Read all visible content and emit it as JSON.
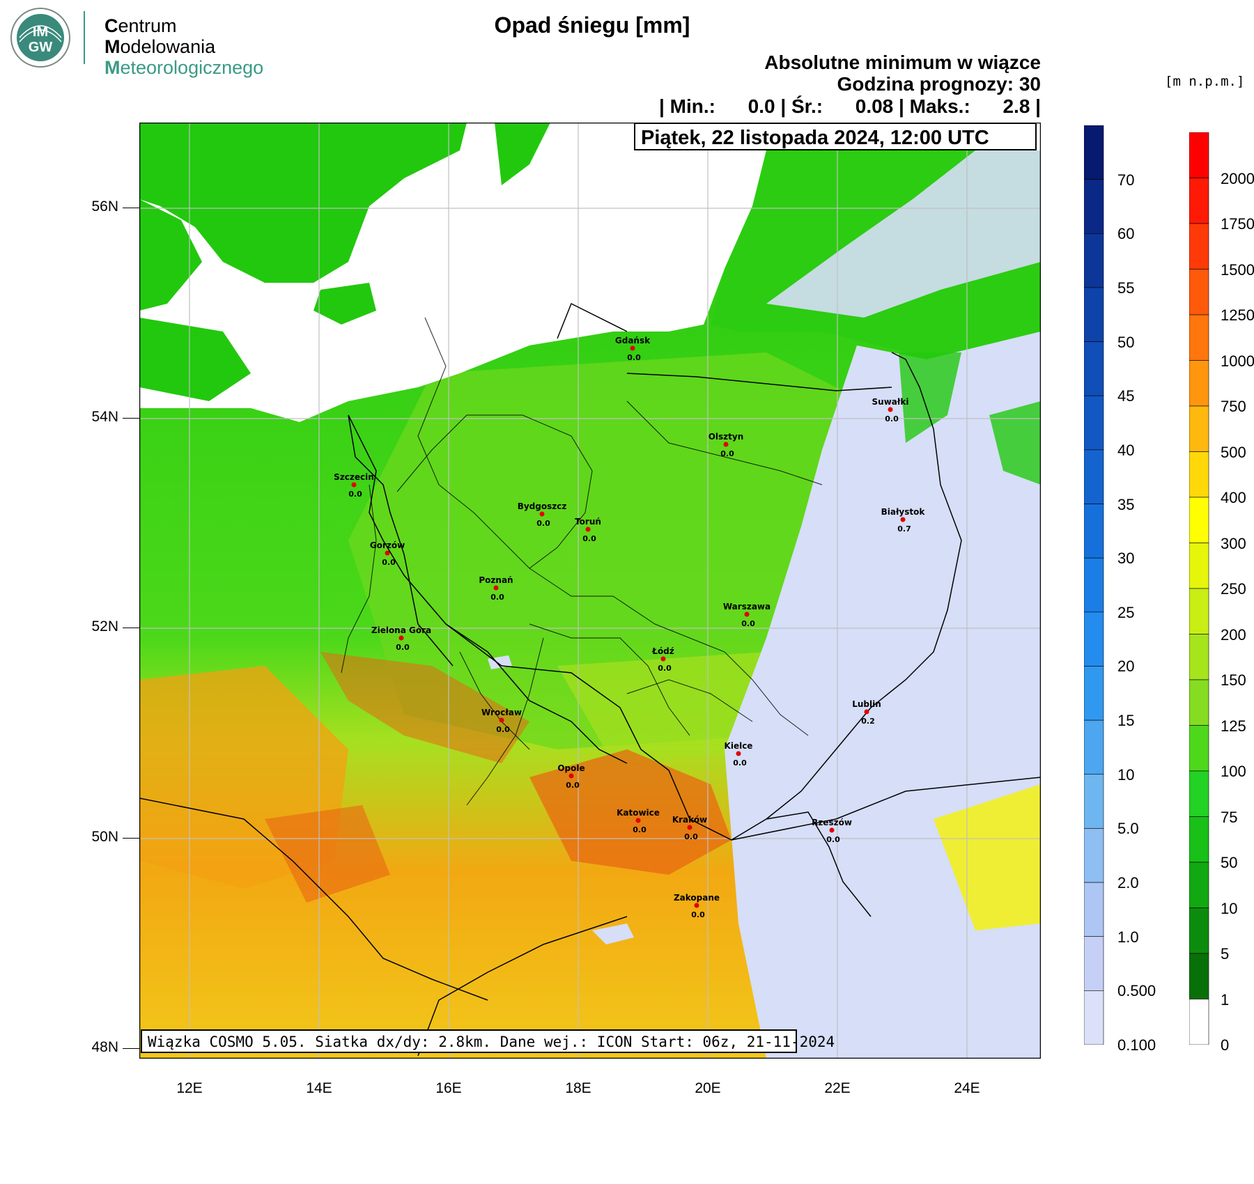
{
  "logo": {
    "badge_text_top": "IM",
    "badge_text_bottom": "GW",
    "line1_initial": "C",
    "line1_rest": "entrum",
    "line2_initial": "M",
    "line2_rest": "odelowania",
    "line3_initial": "M",
    "line3_rest": "eteorologicznego",
    "brand_color": "#3a9a86"
  },
  "title": "Opad śniegu [mm]",
  "subtitle1": "Absolutne minimum w wiązce",
  "subtitle2": "Godzina prognozy: 30",
  "stats": "| Min.:      0.0 | Śr.:      0.08 | Maks.:      2.8 |",
  "date": "Piątek, 22 listopada 2024, 12:00 UTC",
  "footer": "Wiązka COSMO 5.05. Siatka dx/dy: 2.8km. Dane wej.: ICON Start: 06z, 21-11-2024",
  "elevation_unit": "[m n.p.m.]",
  "map": {
    "lat_labels": [
      "56N",
      "54N",
      "52N",
      "50N",
      "48N"
    ],
    "lon_labels": [
      "12E",
      "14E",
      "16E",
      "18E",
      "20E",
      "22E",
      "24E"
    ],
    "cities": [
      {
        "name": "Gdańsk",
        "value": "0.0"
      },
      {
        "name": "Suwałki",
        "value": "0.0"
      },
      {
        "name": "Olsztyn",
        "value": "0.0"
      },
      {
        "name": "Szczecin",
        "value": "0.0"
      },
      {
        "name": "Białystok",
        "value": "0.7"
      },
      {
        "name": "Bydgoszcz",
        "value": "0.0"
      },
      {
        "name": "Toruń",
        "value": "0.0"
      },
      {
        "name": "Gorzów",
        "value": "0.0"
      },
      {
        "name": "Poznań",
        "value": "0.0"
      },
      {
        "name": "Warszawa",
        "value": "0.0"
      },
      {
        "name": "Zielona Góra",
        "value": "0.0"
      },
      {
        "name": "Łódź",
        "value": "0.0"
      },
      {
        "name": "Lublin",
        "value": "0.2"
      },
      {
        "name": "Wrocław",
        "value": "0.0"
      },
      {
        "name": "Kielce",
        "value": "0.0"
      },
      {
        "name": "Opole",
        "value": "0.0"
      },
      {
        "name": "Katowice",
        "value": "0.0"
      },
      {
        "name": "Kraków",
        "value": "0.0"
      },
      {
        "name": "Rzeszów",
        "value": "0.0"
      },
      {
        "name": "Zakopane",
        "value": "0.0"
      }
    ],
    "colors": {
      "sea": "#ffffff",
      "lowland_green": "#22c80e",
      "bright_green": "#4cd81a",
      "yellow_green": "#a6e020",
      "yellow": "#f2ef1e",
      "orange": "#f4a012",
      "red_orange": "#e86812",
      "snow_light": "#d6def8"
    }
  },
  "snow_colorbar": {
    "labels": [
      "70",
      "60",
      "55",
      "50",
      "45",
      "40",
      "35",
      "30",
      "25",
      "20",
      "15",
      "10",
      "5.0",
      "2.0",
      "1.0",
      "0.500",
      "0.100"
    ],
    "colors": [
      "#061a70",
      "#0a2886",
      "#0c3698",
      "#0e44aa",
      "#104eb8",
      "#1258c4",
      "#1464d0",
      "#1670dc",
      "#1b7ee6",
      "#238cee",
      "#3198f0",
      "#4ca6f0",
      "#6eb6f0",
      "#8ebef2",
      "#aec6f4",
      "#c6d0f6",
      "#dbe1f8"
    ]
  },
  "elevation_colorbar": {
    "labels": [
      "2000",
      "1750",
      "1500",
      "1250",
      "1000",
      "750",
      "500",
      "400",
      "300",
      "250",
      "200",
      "150",
      "125",
      "100",
      "75",
      "50",
      "10",
      "5",
      "1",
      "0"
    ],
    "colors": [
      "#ff0000",
      "#ff1a06",
      "#ff3a08",
      "#ff5a0a",
      "#ff760c",
      "#ff960e",
      "#ffb80e",
      "#ffd80a",
      "#ffff00",
      "#e6f60a",
      "#c8ee14",
      "#a6e41c",
      "#86dc20",
      "#4ed81c",
      "#22d224",
      "#18c018",
      "#12a812",
      "#0c8c0c",
      "#087008",
      "#ffffff"
    ]
  }
}
